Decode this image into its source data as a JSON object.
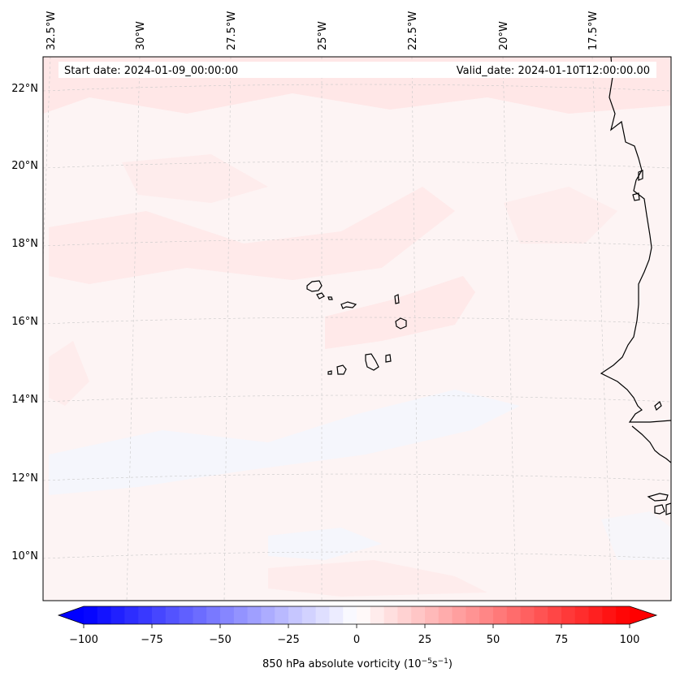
{
  "header": {
    "start_date": "Start date: 2024-01-09_00:00:00",
    "valid_date": "Valid_date: 2024-01-10T12:00:00.00"
  },
  "map": {
    "lon_labels": [
      "32.5°W",
      "30°W",
      "27.5°W",
      "25°W",
      "22.5°W",
      "20°W",
      "17.5°W"
    ],
    "lat_labels": [
      "22°N",
      "20°N",
      "18°N",
      "16°N",
      "14°N",
      "12°N",
      "10°N"
    ],
    "field_color": "#fdf4f4",
    "positive_tint": "#ffe6e6",
    "negative_tint": "#f3f6fe",
    "coast_color": "#000000"
  },
  "colorbar": {
    "label_prefix": "850 hPa absolute vorticity (10",
    "label_exp1": "−5",
    "label_mid": "s",
    "label_exp2": "−1",
    "label_suffix": ")",
    "ticks": [
      "−100",
      "−75",
      "−50",
      "−25",
      "0",
      "25",
      "50",
      "75",
      "100"
    ],
    "min": -100,
    "max": 100,
    "negative_color": "#0000ff",
    "positive_color": "#ff0000",
    "neutral_color": "#ffffff"
  }
}
